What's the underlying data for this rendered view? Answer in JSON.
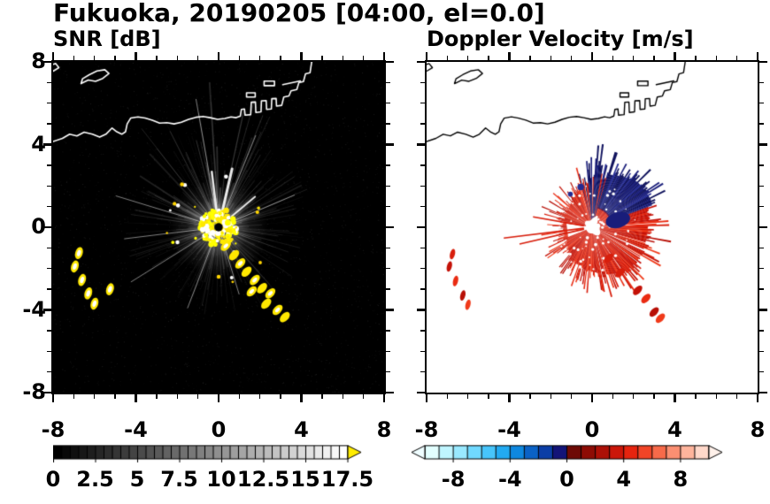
{
  "title": "Fukuoka, 20190205 [04:00, el=0.0]",
  "panels": {
    "snr": {
      "title": "SNR [dB]"
    },
    "doppler": {
      "title": "Doppler Velocity [m/s]"
    }
  },
  "chart_data": {
    "type": "heatmap",
    "description": "Dual-panel radar PPI display over Fukuoka/Hakata Bay: left panel SNR [dB] on black background with radial beam streaks and ground-clutter echoes, right panel Doppler velocity [m/s] with red (positive) and dark blue (negative) echo sectors around the radar site at the origin.",
    "axes": {
      "xlim": [
        -8,
        8
      ],
      "ylim": [
        -8,
        8
      ],
      "x_major_ticks": [
        -8,
        -4,
        0,
        4,
        8
      ],
      "y_major_ticks": [
        -8,
        -4,
        0,
        4,
        8
      ],
      "x_tick_labels": [
        "-8",
        "-4",
        "0",
        "4",
        "8"
      ],
      "y_tick_labels": [
        "-8",
        "-4",
        "0",
        "4",
        "8"
      ],
      "minor_tick_step": 1
    },
    "snr_panel": {
      "title": "SNR [dB]",
      "background": "#000000",
      "coast_color": "#ffffff",
      "colorbar": {
        "min": 0,
        "max": 17.5,
        "segment_step": 0.5,
        "label_values": [
          0,
          2.5,
          5,
          7.5,
          10,
          12.5,
          15,
          17.5
        ],
        "labels": [
          "0",
          "2.5",
          "5",
          "7.5",
          "10",
          "12.5",
          "15",
          "17.5"
        ],
        "start_color": "#000000",
        "end_color": "#ffffff",
        "over_arrow_color": "#ffec00"
      },
      "features": {
        "haze_radius": 2.4,
        "haze_alpha": 0.2,
        "haze2_radius": 1.5,
        "haze2_alpha": 0.3,
        "streaks": {
          "seed": 7,
          "count": 340,
          "max_len": 5.5
        },
        "long_rays": [
          [
            100,
            6.3
          ],
          [
            68,
            4.8
          ],
          [
            23,
            4.0
          ],
          [
            163,
            5.2
          ],
          [
            187,
            4.6
          ],
          [
            212,
            5.0
          ],
          [
            249,
            4.2
          ],
          [
            287,
            3.4
          ]
        ],
        "bright_streaks": [
          [
            77,
            0.5,
            2.9,
            3
          ],
          [
            97,
            0.6,
            2.7,
            2.5
          ],
          [
            40,
            0.8,
            2.3,
            2
          ]
        ],
        "center_dot_radius": 0.2,
        "center_echo_radius": 0.9,
        "center_echo_dots": 190,
        "echo_colors": [
          "#ffff00",
          "#ffe800",
          "#ffffff",
          "#ffd400"
        ],
        "chain": [
          [
            0.35,
            -0.9
          ],
          [
            0.75,
            -1.35
          ],
          [
            1.05,
            -1.75
          ],
          [
            1.35,
            -2.15
          ],
          [
            1.75,
            -2.55
          ],
          [
            2.1,
            -2.95
          ],
          [
            2.5,
            -3.2
          ],
          [
            2.3,
            -3.7
          ],
          [
            2.85,
            -4.0
          ],
          [
            3.2,
            -4.35
          ],
          [
            1.6,
            -3.1
          ]
        ],
        "islands": [
          [
            -6.75,
            -1.25
          ],
          [
            -6.95,
            -1.9
          ],
          [
            -6.6,
            -2.55
          ],
          [
            -6.3,
            -3.2
          ],
          [
            -6.0,
            -3.7
          ],
          [
            -5.25,
            -3.0
          ]
        ]
      }
    },
    "doppler_panel": {
      "title": "Doppler Velocity [m/s]",
      "background": "#ffffff",
      "coast_color": "#000000",
      "colorbar": {
        "min": -10,
        "max": 10,
        "segment_step": 1,
        "label_values": [
          -8,
          -4,
          0,
          4,
          8
        ],
        "labels": [
          "-8",
          "-4",
          "0",
          "4",
          "8"
        ],
        "colors": [
          "#e2ffff",
          "#bff5ff",
          "#99e9ff",
          "#70d9ff",
          "#47c5fb",
          "#22aaf2",
          "#0e88e0",
          "#0a62c6",
          "#0b3ea6",
          "#131478",
          "#6e0a05",
          "#8e0c05",
          "#ad1007",
          "#cb1609",
          "#e6240f",
          "#f14527",
          "#f76a4a",
          "#fb8f72",
          "#feb49c",
          "#ffd8ca"
        ],
        "under_arrow_color": "#effdff",
        "over_arrow_color": "#fff1ea"
      },
      "features": {
        "seed": 12,
        "radius_control": [
          [
            0,
            2.5
          ],
          [
            20,
            2.6
          ],
          [
            45,
            2.75
          ],
          [
            75,
            2.45
          ],
          [
            95,
            2.3
          ],
          [
            120,
            1.95
          ],
          [
            160,
            1.6
          ],
          [
            200,
            1.5
          ],
          [
            240,
            1.7
          ],
          [
            270,
            2.0
          ],
          [
            300,
            2.35
          ],
          [
            330,
            2.45
          ],
          [
            360,
            2.5
          ]
        ],
        "noise_amp": 0.35,
        "spike_amp": 1.25,
        "navy_sector": [
          20,
          74
        ],
        "mixed_sector": [
          74,
          104
        ],
        "navy_inner_radius": 0.95,
        "east_navy_blob": [
          1.25,
          0.35,
          0.6,
          0.38,
          -15
        ],
        "nw_navy_specks": [
          [
            -0.55,
            1.95,
            0.16
          ],
          [
            -1.05,
            1.6,
            0.12
          ]
        ],
        "white_core_radius": 0.3,
        "white_notch": [
          172,
          202,
          1.25
        ],
        "thin_rays": [
          [
            187,
            4.3
          ],
          [
            193,
            3.6
          ],
          [
            170,
            2.9
          ]
        ],
        "red_colors": [
          "#d81e0c",
          "#c41208",
          "#ea2b12",
          "#b80f06",
          "#f03a1a"
        ],
        "navy_colors": [
          "#191d7a",
          "#10135f",
          "#232a92",
          "#0d105a"
        ],
        "chain": [
          [
            1.35,
            -2.2
          ],
          [
            2.2,
            -3.05
          ],
          [
            2.6,
            -3.45
          ],
          [
            3.0,
            -4.1
          ],
          [
            3.3,
            -4.4
          ],
          [
            0.8,
            -1.5
          ]
        ],
        "islands": [
          [
            -6.9,
            -1.9
          ],
          [
            -6.6,
            -2.6
          ],
          [
            -6.25,
            -3.3
          ],
          [
            -6.0,
            -3.75
          ],
          [
            -6.75,
            -1.3
          ]
        ]
      }
    },
    "coastline": {
      "main": [
        [
          -8,
          4.15
        ],
        [
          -7.55,
          4.3
        ],
        [
          -7.2,
          4.5
        ],
        [
          -6.85,
          4.42
        ],
        [
          -6.5,
          4.6
        ],
        [
          -6.1,
          4.5
        ],
        [
          -5.75,
          4.36
        ],
        [
          -5.45,
          4.5
        ],
        [
          -5.15,
          4.8
        ],
        [
          -4.92,
          4.62
        ],
        [
          -4.68,
          4.5
        ],
        [
          -4.5,
          4.62
        ],
        [
          -4.42,
          5.0
        ],
        [
          -4.25,
          5.28
        ],
        [
          -3.9,
          5.34
        ],
        [
          -3.55,
          5.28
        ],
        [
          -3.2,
          5.18
        ],
        [
          -2.85,
          5.04
        ],
        [
          -2.5,
          5.06
        ],
        [
          -2.15,
          5.0
        ],
        [
          -1.8,
          5.08
        ],
        [
          -1.45,
          5.22
        ],
        [
          -1.1,
          5.32
        ],
        [
          -0.75,
          5.36
        ],
        [
          -0.4,
          5.3
        ],
        [
          -0.05,
          5.22
        ],
        [
          0.3,
          5.26
        ],
        [
          0.6,
          5.34
        ],
        [
          0.85,
          5.3
        ],
        [
          1.05,
          5.38
        ],
        [
          1.1,
          5.7
        ],
        [
          1.25,
          5.72
        ],
        [
          1.28,
          5.42
        ],
        [
          1.55,
          5.45
        ],
        [
          1.58,
          6.05
        ],
        [
          1.78,
          6.06
        ],
        [
          1.8,
          5.55
        ],
        [
          2.05,
          5.58
        ],
        [
          2.07,
          6.12
        ],
        [
          2.3,
          6.13
        ],
        [
          2.32,
          5.7
        ],
        [
          2.55,
          5.72
        ],
        [
          2.57,
          6.22
        ],
        [
          2.78,
          6.23
        ],
        [
          2.8,
          5.86
        ],
        [
          3.05,
          5.9
        ],
        [
          3.15,
          6.3
        ],
        [
          3.4,
          6.35
        ],
        [
          3.5,
          6.6
        ],
        [
          3.78,
          6.66
        ],
        [
          3.88,
          7.0
        ],
        [
          4.1,
          7.05
        ],
        [
          4.2,
          7.42
        ],
        [
          4.42,
          7.48
        ],
        [
          4.5,
          8.0
        ]
      ],
      "island": [
        [
          -6.65,
          6.95
        ],
        [
          -6.3,
          7.12
        ],
        [
          -5.95,
          7.06
        ],
        [
          -5.6,
          7.2
        ],
        [
          -5.3,
          7.44
        ],
        [
          -5.5,
          7.62
        ],
        [
          -5.88,
          7.56
        ],
        [
          -6.25,
          7.38
        ],
        [
          -6.58,
          7.18
        ],
        [
          -6.65,
          6.95
        ]
      ],
      "corner": [
        [
          -8,
          7.55
        ],
        [
          -7.72,
          7.72
        ],
        [
          -7.88,
          7.92
        ],
        [
          -8,
          7.88
        ]
      ],
      "rects": [
        [
          1.35,
          6.3,
          0.42,
          0.2
        ],
        [
          2.2,
          6.85,
          0.5,
          0.22
        ]
      ],
      "segments": [
        [
          [
            3.1,
            6.9
          ],
          [
            3.95,
            7.08
          ]
        ]
      ]
    }
  }
}
